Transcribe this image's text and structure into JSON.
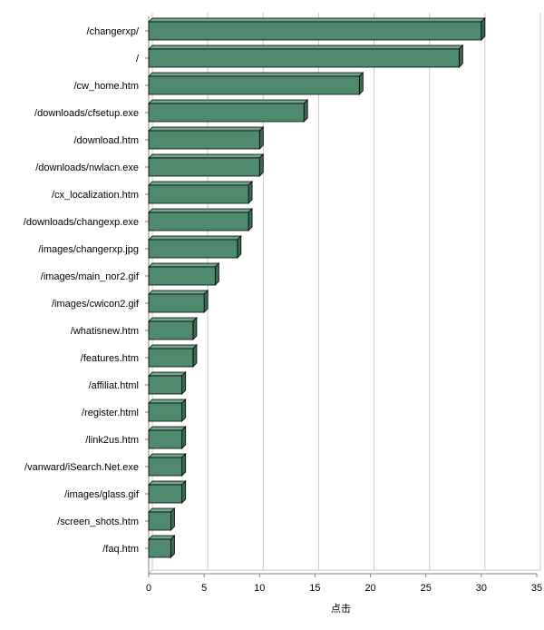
{
  "chart_data": {
    "type": "bar",
    "orientation": "horizontal",
    "style": "3d",
    "categories": [
      "/changerxp/",
      "/",
      "/cw_home.htm",
      "/downloads/cfsetup.exe",
      "/download.htm",
      "/downloads/nwlacn.exe",
      "/cx_localization.htm",
      "/downloads/changexp.exe",
      "/images/changerxp.jpg",
      "/images/main_nor2.gif",
      "/images/cwicon2.gif",
      "/whatisnew.htm",
      "/features.htm",
      "/affiliat.html",
      "/register.html",
      "/link2us.htm",
      "/vanward/iSearch.Net.exe",
      "/images/glass.gif",
      "/screen_shots.htm",
      "/faq.htm"
    ],
    "values": [
      30,
      28,
      19,
      14,
      10,
      10,
      9,
      9,
      8,
      6,
      5,
      4,
      4,
      3,
      3,
      3,
      3,
      3,
      2,
      2
    ],
    "xlabel": "点击",
    "ylabel": "",
    "title": "",
    "xlim": [
      0,
      35
    ],
    "xticks": [
      0,
      5,
      10,
      15,
      20,
      25,
      30,
      35
    ],
    "grid": true,
    "colors": {
      "bar_front": "#4f8a6f",
      "bar_top": "#6fa68c",
      "bar_side": "#3a6a52",
      "bar_edge": "#000000",
      "grid": "#c8c8c8",
      "axis": "#808080"
    }
  }
}
